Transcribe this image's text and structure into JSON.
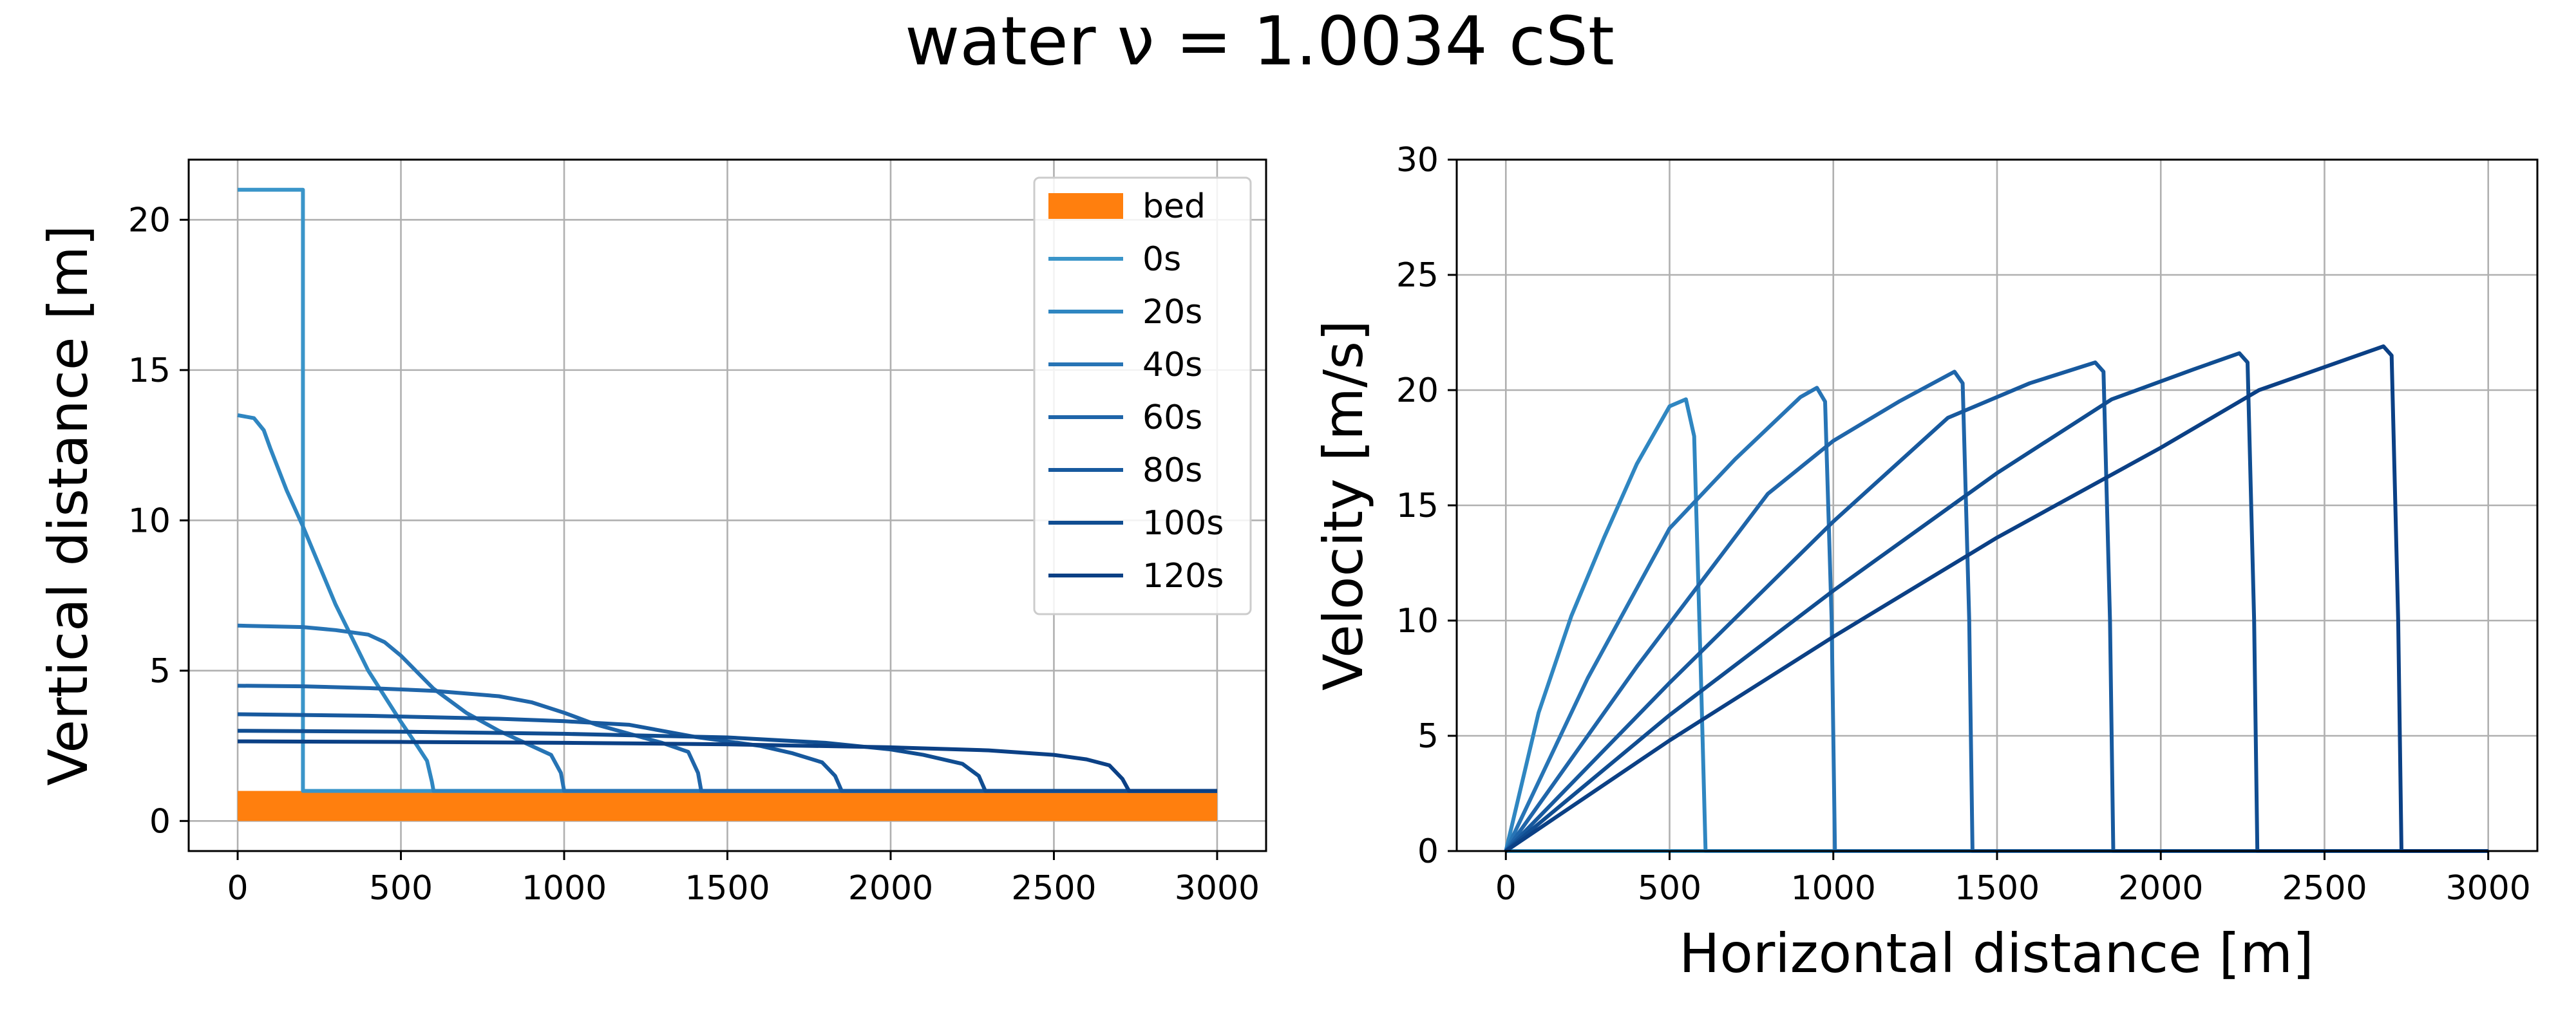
{
  "figure": {
    "title": "water ν = 1.0034 cSt"
  },
  "chart_data": [
    {
      "type": "line",
      "title": "",
      "xlabel": "",
      "ylabel": "Vertical distance [m]",
      "xlim": [
        -150,
        3150
      ],
      "ylim": [
        -1.0,
        22.0
      ],
      "xticks": [
        0,
        500,
        1000,
        1500,
        2000,
        2500,
        3000
      ],
      "yticks": [
        0,
        5,
        10,
        15,
        20
      ],
      "grid": true,
      "legend": {
        "placement": "upper right",
        "entries": [
          "bed",
          "0s",
          "20s",
          "40s",
          "60s",
          "80s",
          "100s",
          "120s"
        ]
      },
      "bed": {
        "name": "bed",
        "x": [
          0,
          3000
        ],
        "height": 1.0,
        "color": "#ff7f0e"
      },
      "series": [
        {
          "name": "0s",
          "color": "#3a95c9",
          "x": [
            0,
            200,
            200,
            3000
          ],
          "y": [
            21.0,
            21.0,
            1.0,
            1.0
          ]
        },
        {
          "name": "20s",
          "color": "#2f86c1",
          "x": [
            0,
            50,
            80,
            100,
            150,
            200,
            300,
            400,
            500,
            550,
            580,
            595,
            600,
            3000
          ],
          "y": [
            13.5,
            13.4,
            13.0,
            12.4,
            11.0,
            9.8,
            7.2,
            5.0,
            3.3,
            2.5,
            2.0,
            1.3,
            1.0,
            1.0
          ]
        },
        {
          "name": "40s",
          "color": "#2774b5",
          "x": [
            0,
            200,
            300,
            400,
            450,
            500,
            600,
            700,
            800,
            900,
            960,
            990,
            1000,
            3000
          ],
          "y": [
            6.5,
            6.45,
            6.35,
            6.2,
            5.95,
            5.5,
            4.4,
            3.6,
            3.0,
            2.5,
            2.2,
            1.6,
            1.0,
            1.0
          ]
        },
        {
          "name": "60s",
          "color": "#1f65a9",
          "x": [
            0,
            200,
            400,
            600,
            800,
            900,
            1000,
            1100,
            1200,
            1300,
            1380,
            1410,
            1420,
            3000
          ],
          "y": [
            4.5,
            4.48,
            4.42,
            4.33,
            4.15,
            3.95,
            3.6,
            3.2,
            2.9,
            2.6,
            2.3,
            1.6,
            1.0,
            1.0
          ]
        },
        {
          "name": "80s",
          "color": "#17599e",
          "x": [
            0,
            400,
            800,
            1000,
            1200,
            1400,
            1600,
            1700,
            1790,
            1830,
            1850,
            3000
          ],
          "y": [
            3.55,
            3.5,
            3.4,
            3.32,
            3.2,
            2.8,
            2.5,
            2.25,
            1.95,
            1.5,
            1.0,
            1.0
          ]
        },
        {
          "name": "100s",
          "color": "#104d91",
          "x": [
            0,
            500,
            1000,
            1500,
            1800,
            2000,
            2100,
            2220,
            2270,
            2290,
            3000
          ],
          "y": [
            3.0,
            2.97,
            2.9,
            2.78,
            2.6,
            2.38,
            2.2,
            1.9,
            1.5,
            1.0,
            1.0
          ]
        },
        {
          "name": "120s",
          "color": "#0b4085",
          "x": [
            0,
            500,
            1000,
            1500,
            2000,
            2300,
            2500,
            2600,
            2670,
            2710,
            2730,
            3000
          ],
          "y": [
            2.65,
            2.63,
            2.6,
            2.55,
            2.45,
            2.35,
            2.2,
            2.05,
            1.85,
            1.4,
            1.0,
            1.0
          ]
        }
      ]
    },
    {
      "type": "line",
      "title": "",
      "xlabel": "Horizontal distance [m]",
      "ylabel": "Velocity [m/s]",
      "xlim": [
        -150,
        3150
      ],
      "ylim": [
        0,
        30
      ],
      "xticks": [
        0,
        500,
        1000,
        1500,
        2000,
        2500,
        3000
      ],
      "yticks": [
        0,
        5,
        10,
        15,
        20,
        25,
        30
      ],
      "grid": true,
      "series": [
        {
          "name": "0s",
          "color": "#3a95c9",
          "x": [
            0,
            3000
          ],
          "y": [
            0,
            0
          ]
        },
        {
          "name": "20s",
          "color": "#2f86c1",
          "x": [
            0,
            100,
            200,
            300,
            400,
            500,
            550,
            575,
            595,
            610,
            3000
          ],
          "y": [
            0,
            6.0,
            10.2,
            13.6,
            16.8,
            19.3,
            19.6,
            18.0,
            8.0,
            0,
            0
          ]
        },
        {
          "name": "40s",
          "color": "#2774b5",
          "x": [
            0,
            250,
            500,
            700,
            900,
            950,
            975,
            995,
            1005,
            3000
          ],
          "y": [
            0,
            7.5,
            14.0,
            17.0,
            19.7,
            20.1,
            19.5,
            10.0,
            0,
            0
          ]
        },
        {
          "name": "60s",
          "color": "#1f65a9",
          "x": [
            0,
            400,
            800,
            1000,
            1200,
            1370,
            1395,
            1415,
            1425,
            3000
          ],
          "y": [
            0,
            8.0,
            15.5,
            17.8,
            19.5,
            20.8,
            20.3,
            10.0,
            0,
            0
          ]
        },
        {
          "name": "80s",
          "color": "#17599e",
          "x": [
            0,
            500,
            1000,
            1350,
            1600,
            1800,
            1825,
            1845,
            1855,
            3000
          ],
          "y": [
            0,
            7.3,
            14.3,
            18.8,
            20.3,
            21.2,
            20.8,
            10.0,
            0,
            0
          ]
        },
        {
          "name": "100s",
          "color": "#104d91",
          "x": [
            0,
            500,
            1000,
            1500,
            1850,
            2100,
            2240,
            2265,
            2285,
            2295,
            3000
          ],
          "y": [
            0,
            5.9,
            11.3,
            16.4,
            19.6,
            20.9,
            21.6,
            21.2,
            10.0,
            0,
            0
          ]
        },
        {
          "name": "120s",
          "color": "#0b4085",
          "x": [
            0,
            500,
            1000,
            1500,
            2000,
            2300,
            2500,
            2680,
            2705,
            2725,
            2735,
            3000
          ],
          "y": [
            0,
            4.8,
            9.3,
            13.6,
            17.5,
            20.0,
            21.0,
            21.9,
            21.5,
            10.0,
            0,
            0
          ]
        }
      ]
    }
  ]
}
